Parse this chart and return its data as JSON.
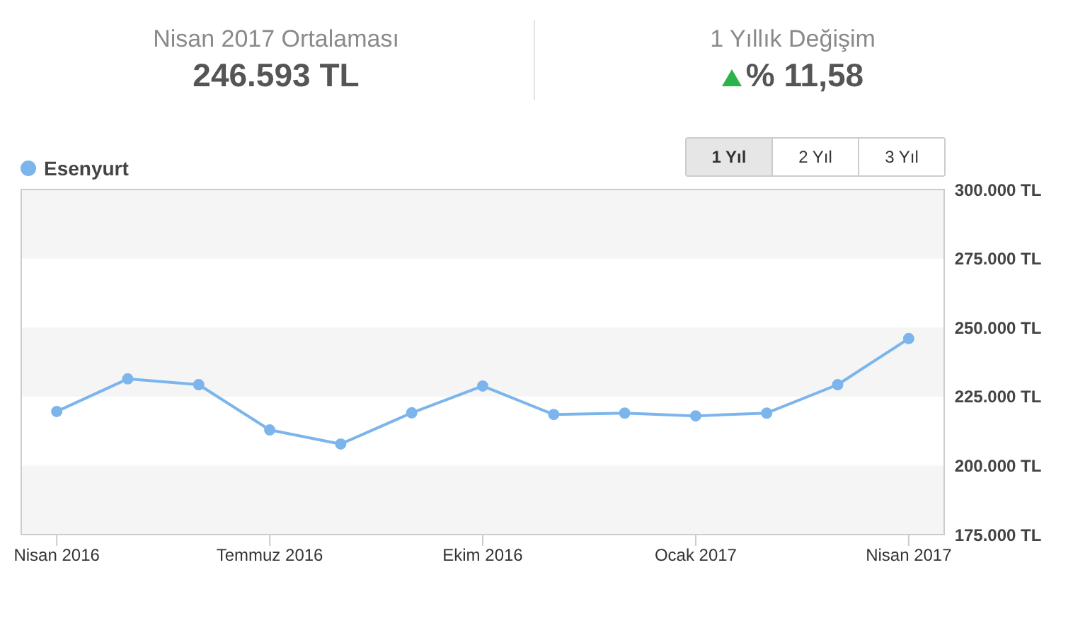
{
  "chart_data": {
    "type": "line",
    "annotations": [
      "Nisan 2017 Ortalaması",
      "246.593 TL",
      "1 Yıllık Değişim",
      "% 11,58",
      "1 Yıl",
      "2 Yıl",
      "3 Yıl"
    ],
    "categories": [
      "Nisan 2016",
      null,
      null,
      "Temmuz 2016",
      null,
      null,
      "Ekim 2016",
      null,
      null,
      "Ocak 2017",
      null,
      null,
      "Nisan 2017"
    ],
    "series": [
      {
        "name": "Esenyurt",
        "color": "#7cb5ec",
        "values": [
          219600,
          231400,
          229300,
          212900,
          207800,
          219100,
          228800,
          218500,
          219000,
          218000,
          219000,
          229300,
          246000
        ]
      }
    ],
    "ylim": [
      175000,
      300000
    ],
    "yticks": [
      {
        "value": 175000,
        "label": "175.000 TL"
      },
      {
        "value": 200000,
        "label": "200.000 TL"
      },
      {
        "value": 225000,
        "label": "225.000 TL"
      },
      {
        "value": 250000,
        "label": "250.000 TL"
      },
      {
        "value": 275000,
        "label": "275.000 TL"
      },
      {
        "value": 300000,
        "label": "300.000 TL"
      }
    ],
    "bands": [
      {
        "axis": "y",
        "from": 175000,
        "to": 200000,
        "color": "#f5f5f5"
      },
      {
        "axis": "y",
        "from": 225000,
        "to": 250000,
        "color": "#f5f5f5"
      },
      {
        "axis": "y",
        "from": 275000,
        "to": 300000,
        "color": "#f5f5f5"
      }
    ],
    "legend": "top left",
    "marker": "circle",
    "line_style": "solid",
    "grid": false
  }
}
